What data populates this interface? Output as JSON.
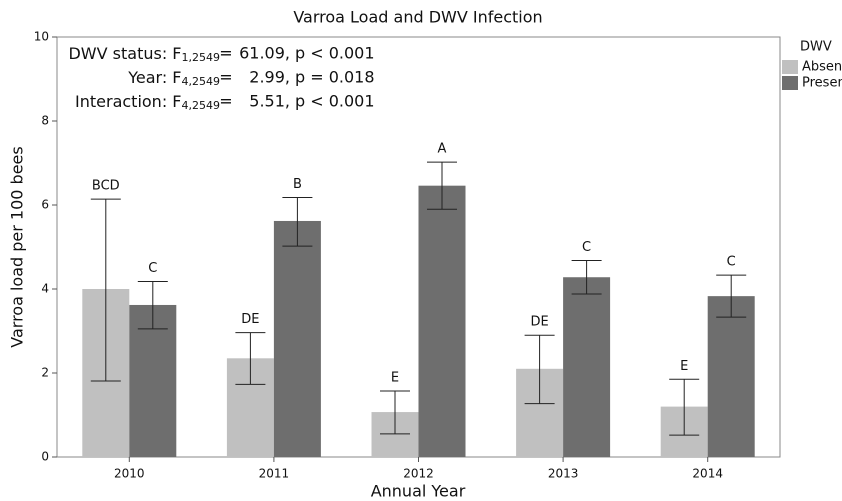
{
  "chart_data": {
    "type": "bar",
    "title": "Varroa Load and DWV Infection",
    "x_label": "Annual Year",
    "y_label": "Varroa load per 100 bees",
    "categories": [
      "2010",
      "2011",
      "2012",
      "2013",
      "2014"
    ],
    "legend_title": "DWV",
    "legend": "right",
    "series": [
      {
        "name": "Absent",
        "color": "#c0c0c0",
        "values": [
          4.0,
          2.35,
          1.07,
          2.1,
          1.2
        ],
        "ci_low": [
          1.81,
          1.73,
          0.55,
          1.27,
          0.52
        ],
        "ci_high": [
          6.14,
          2.96,
          1.57,
          2.9,
          1.85
        ],
        "labels": [
          "BCD",
          "DE",
          "E",
          "DE",
          "E"
        ]
      },
      {
        "name": "Present",
        "color": "#6e6e6e",
        "values": [
          3.62,
          5.62,
          6.46,
          4.28,
          3.83
        ],
        "ci_low": [
          3.05,
          5.02,
          5.9,
          3.88,
          3.33
        ],
        "ci_high": [
          4.18,
          6.18,
          7.02,
          4.68,
          4.33
        ],
        "labels": [
          "C",
          "B",
          "A",
          "C",
          "C"
        ]
      }
    ],
    "ylim": [
      0,
      10
    ],
    "yticks": [
      0,
      2,
      4,
      6,
      8,
      10
    ],
    "annotations": [
      {
        "prefix": "DWV status: F",
        "df": "1,2549",
        "eq": "=",
        "value": "61.09,",
        "p": "p < 0.001"
      },
      {
        "prefix": "Year: F",
        "df": "4,2549",
        "eq": "=",
        "value": "2.99,",
        "p": "p = 0.018"
      },
      {
        "prefix": "Interaction: F",
        "df": "4,2549",
        "eq": "=",
        "value": "5.51,",
        "p": "p < 0.001"
      }
    ]
  }
}
